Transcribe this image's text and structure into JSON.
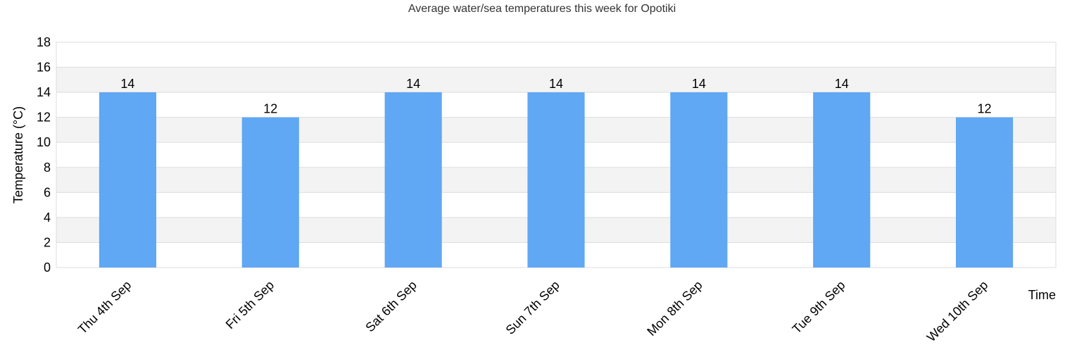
{
  "chart_data": {
    "type": "bar",
    "title": "Average water/sea temperatures this week for Opotiki",
    "xlabel": "Time",
    "ylabel": "Temperature (°C)",
    "categories": [
      "Thu 4th Sep",
      "Fri 5th Sep",
      "Sat 6th Sep",
      "Sun 7th Sep",
      "Mon 8th Sep",
      "Tue 9th Sep",
      "Wed 10th Sep"
    ],
    "values": [
      14,
      12,
      14,
      14,
      14,
      14,
      12
    ],
    "data_labels": [
      "14",
      "12",
      "14",
      "14",
      "14",
      "14",
      "12"
    ],
    "ylim": [
      0,
      18
    ],
    "yticks": [
      "0",
      "2",
      "4",
      "6",
      "8",
      "10",
      "12",
      "14",
      "16",
      "18"
    ],
    "grid": true,
    "legend": "none",
    "colors": {
      "bar": "#60a7f4",
      "band_alt": "#f3f3f3",
      "grid": "#dddddd"
    }
  }
}
